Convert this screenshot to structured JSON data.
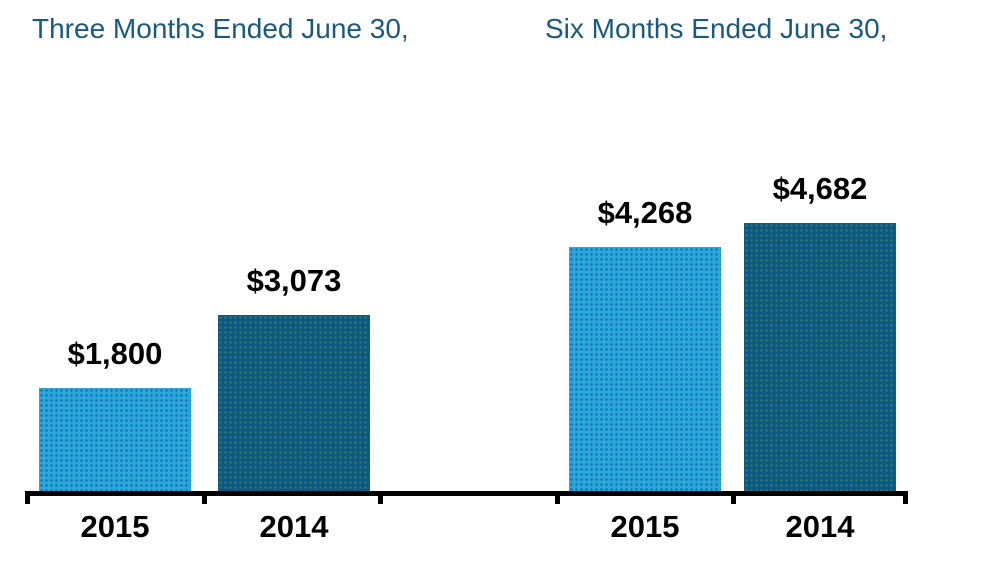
{
  "chart_data": {
    "type": "bar",
    "title": "",
    "xlabel": "",
    "ylabel": "",
    "grid": false,
    "legend_position": "none",
    "y_axis_visible": false,
    "ylim": [
      0,
      4800
    ],
    "value_prefix": "$",
    "groups": [
      {
        "title": "Three Months Ended June 30,",
        "categories": [
          "2015",
          "2014"
        ],
        "values": [
          1800,
          3073
        ],
        "labels": [
          "$1,800",
          "$3,073"
        ]
      },
      {
        "title": "Six Months Ended June 30,",
        "categories": [
          "2015",
          "2014"
        ],
        "values": [
          4268,
          4682
        ],
        "labels": [
          "$4,268",
          "$4,682"
        ]
      }
    ],
    "series_colors": [
      {
        "name": "2015",
        "color": "#2CA7DE"
      },
      {
        "name": "2014",
        "color": "#0B5886"
      }
    ],
    "x_axis": {
      "baseline_visible": true,
      "tick_count": 6
    }
  },
  "colors": {
    "background": "#FFFFFF",
    "header_text": "#1A5A7E",
    "series_2015": "#2CA7DE",
    "series_2015_dot": "#1173A8",
    "series_2014": "#0B5886",
    "series_2014_dot": "#35795A",
    "axis": "#000000",
    "value_label": "#000000"
  }
}
